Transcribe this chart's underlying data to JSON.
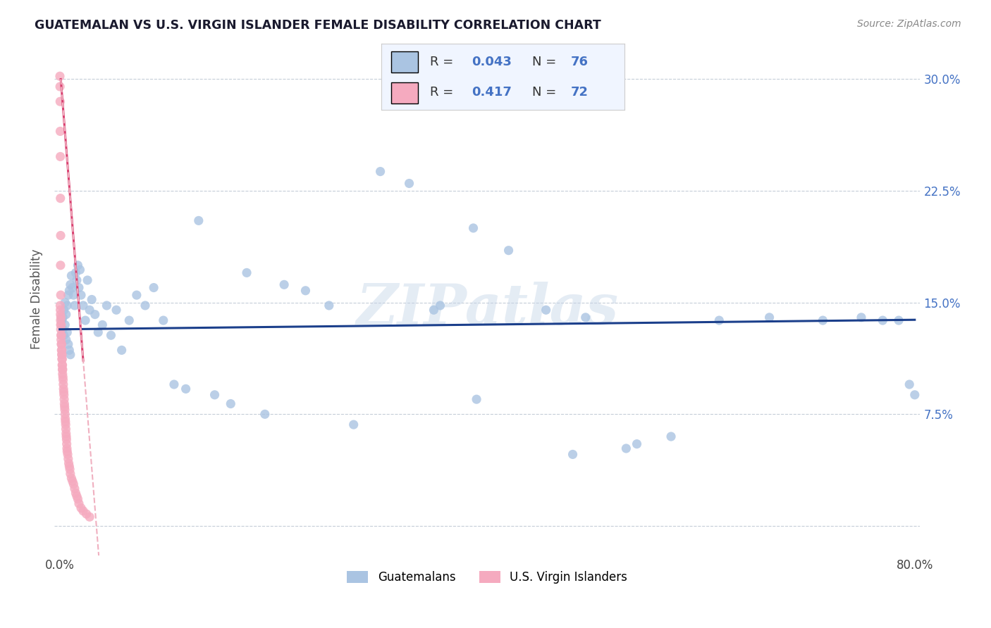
{
  "title": "GUATEMALAN VS U.S. VIRGIN ISLANDER FEMALE DISABILITY CORRELATION CHART",
  "source": "Source: ZipAtlas.com",
  "ylabel": "Female Disability",
  "y_ticks": [
    0.0,
    0.075,
    0.15,
    0.225,
    0.3
  ],
  "y_tick_labels": [
    "",
    "7.5%",
    "15.0%",
    "22.5%",
    "30.0%"
  ],
  "xlim": [
    -0.005,
    0.805
  ],
  "ylim": [
    -0.02,
    0.325
  ],
  "blue_R": "0.043",
  "blue_N": "76",
  "pink_R": "0.417",
  "pink_N": "72",
  "blue_color": "#aac4e2",
  "pink_color": "#f5aabf",
  "blue_line_color": "#1b3f8b",
  "pink_line_color": "#d94070",
  "pink_dash_color": "#f0b0c0",
  "watermark_text": "ZIPatlas",
  "blue_points_x": [
    0.002,
    0.003,
    0.003,
    0.004,
    0.004,
    0.005,
    0.005,
    0.006,
    0.006,
    0.007,
    0.007,
    0.008,
    0.008,
    0.009,
    0.009,
    0.01,
    0.01,
    0.011,
    0.012,
    0.013,
    0.014,
    0.015,
    0.016,
    0.017,
    0.018,
    0.019,
    0.02,
    0.022,
    0.024,
    0.026,
    0.028,
    0.03,
    0.033,
    0.036,
    0.04,
    0.044,
    0.048,
    0.053,
    0.058,
    0.065,
    0.072,
    0.08,
    0.088,
    0.097,
    0.107,
    0.118,
    0.13,
    0.145,
    0.16,
    0.175,
    0.192,
    0.21,
    0.23,
    0.252,
    0.275,
    0.3,
    0.327,
    0.356,
    0.387,
    0.42,
    0.455,
    0.492,
    0.53,
    0.572,
    0.617,
    0.664,
    0.714,
    0.75,
    0.77,
    0.785,
    0.795,
    0.8,
    0.48,
    0.54,
    0.39,
    0.35
  ],
  "blue_points_y": [
    0.138,
    0.14,
    0.132,
    0.145,
    0.128,
    0.15,
    0.135,
    0.142,
    0.125,
    0.148,
    0.13,
    0.155,
    0.122,
    0.158,
    0.118,
    0.162,
    0.115,
    0.168,
    0.16,
    0.155,
    0.148,
    0.17,
    0.165,
    0.175,
    0.16,
    0.172,
    0.155,
    0.148,
    0.138,
    0.165,
    0.145,
    0.152,
    0.142,
    0.13,
    0.135,
    0.148,
    0.128,
    0.145,
    0.118,
    0.138,
    0.155,
    0.148,
    0.16,
    0.138,
    0.095,
    0.092,
    0.205,
    0.088,
    0.082,
    0.17,
    0.075,
    0.162,
    0.158,
    0.148,
    0.068,
    0.238,
    0.23,
    0.148,
    0.2,
    0.185,
    0.145,
    0.14,
    0.052,
    0.06,
    0.138,
    0.14,
    0.138,
    0.14,
    0.138,
    0.138,
    0.095,
    0.088,
    0.048,
    0.055,
    0.085,
    0.145
  ],
  "pink_points_x": [
    0.0005,
    0.0006,
    0.0007,
    0.0008,
    0.0009,
    0.001,
    0.0011,
    0.0012,
    0.0013,
    0.0014,
    0.0015,
    0.0016,
    0.0017,
    0.0018,
    0.0019,
    0.002,
    0.0021,
    0.0022,
    0.0023,
    0.0024,
    0.0025,
    0.0026,
    0.0027,
    0.0028,
    0.003,
    0.0032,
    0.0034,
    0.0036,
    0.0038,
    0.004,
    0.0042,
    0.0044,
    0.0046,
    0.0048,
    0.005,
    0.0052,
    0.0054,
    0.0056,
    0.0058,
    0.006,
    0.0062,
    0.0064,
    0.0066,
    0.0068,
    0.007,
    0.0075,
    0.008,
    0.0085,
    0.009,
    0.0095,
    0.01,
    0.011,
    0.012,
    0.013,
    0.014,
    0.015,
    0.016,
    0.017,
    0.018,
    0.02,
    0.022,
    0.025,
    0.028,
    0.001,
    0.0008,
    0.0009,
    0.0007,
    0.0006,
    0.0005,
    0.0004,
    0.0003,
    0.0002
  ],
  "pink_points_y": [
    0.148,
    0.145,
    0.142,
    0.138,
    0.135,
    0.132,
    0.14,
    0.128,
    0.125,
    0.135,
    0.122,
    0.128,
    0.118,
    0.122,
    0.115,
    0.118,
    0.112,
    0.115,
    0.108,
    0.112,
    0.105,
    0.108,
    0.102,
    0.105,
    0.1,
    0.098,
    0.095,
    0.092,
    0.09,
    0.088,
    0.085,
    0.082,
    0.08,
    0.078,
    0.075,
    0.072,
    0.07,
    0.068,
    0.065,
    0.062,
    0.06,
    0.058,
    0.055,
    0.052,
    0.05,
    0.048,
    0.045,
    0.042,
    0.04,
    0.038,
    0.035,
    0.032,
    0.03,
    0.028,
    0.025,
    0.022,
    0.02,
    0.018,
    0.015,
    0.012,
    0.01,
    0.008,
    0.006,
    0.155,
    0.175,
    0.195,
    0.22,
    0.248,
    0.265,
    0.285,
    0.295,
    0.302
  ]
}
